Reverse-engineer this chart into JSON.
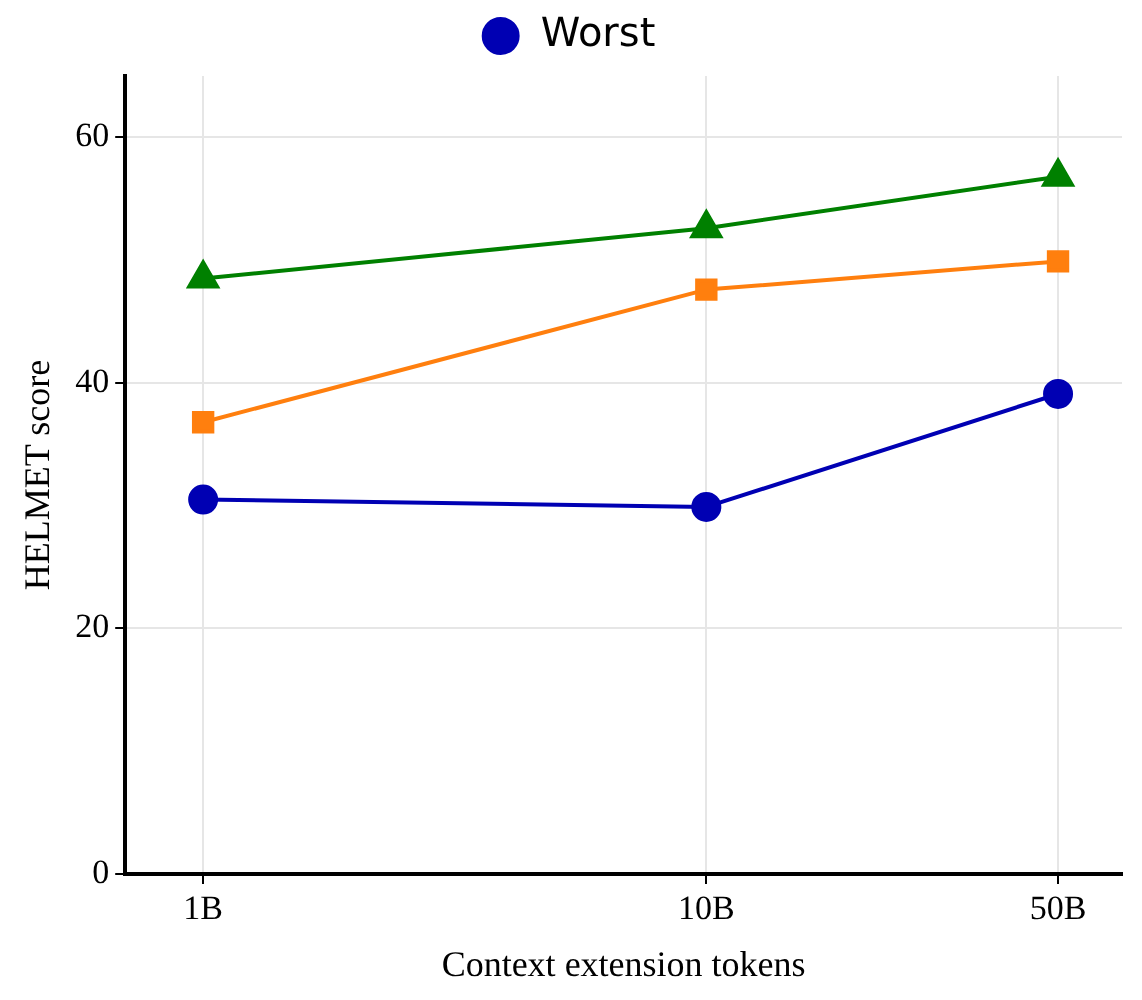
{
  "chart_data": {
    "type": "line",
    "xlabel": "Context extension tokens",
    "ylabel": "HELMET score",
    "x": [
      1,
      10,
      50
    ],
    "log": "x",
    "xlim": [
      0.7,
      67
    ],
    "xticks": [
      {
        "value": 1,
        "label": "1B"
      },
      {
        "value": 10,
        "label": "10B"
      },
      {
        "value": 50,
        "label": "50B"
      }
    ],
    "ylim": [
      0,
      65
    ],
    "yticks": [
      0,
      20,
      40,
      60
    ],
    "grid": true,
    "legend": "top",
    "line_style": "solid",
    "series": [
      {
        "name": "Worst",
        "color": "#0000b3",
        "marker": "circle",
        "values": [
          30.5,
          29.9,
          39.1
        ]
      },
      {
        "color": "#ff7f0e",
        "marker": "square",
        "values": [
          36.8,
          47.6,
          49.9
        ]
      },
      {
        "color": "#008000",
        "marker": "triangle",
        "values": [
          48.5,
          52.6,
          56.8
        ]
      }
    ]
  }
}
